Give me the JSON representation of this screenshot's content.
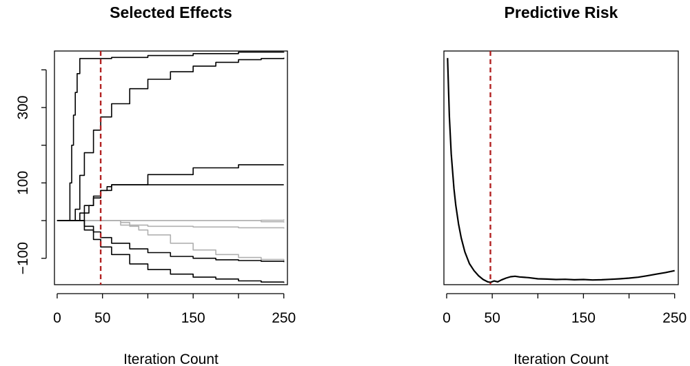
{
  "chart_data": [
    {
      "type": "line",
      "title": "Selected Effects",
      "xlabel": "Iteration Count",
      "ylabel": "",
      "xlim": [
        -3,
        254
      ],
      "ylim": [
        -170,
        450
      ],
      "xticks": [
        0,
        50,
        100,
        150,
        200,
        250
      ],
      "xtick_labels": [
        "0",
        "50",
        "",
        "150",
        "",
        "250"
      ],
      "yticks": [
        -100,
        0,
        100,
        200,
        300,
        400
      ],
      "ytick_labels": [
        "−100",
        "",
        "100",
        "",
        "300",
        ""
      ],
      "vline": {
        "x": 48,
        "color": "#b22222",
        "style": "dashed"
      },
      "grid": false,
      "legend": "none",
      "series": [
        {
          "color": "#000000",
          "step": true,
          "x": [
            0,
            12,
            14,
            16,
            18,
            20,
            22,
            25,
            30,
            40,
            60,
            100,
            150,
            200,
            250
          ],
          "y": [
            0,
            0,
            100,
            200,
            280,
            340,
            390,
            430,
            430,
            430,
            433,
            438,
            443,
            447,
            448
          ]
        },
        {
          "color": "#000000",
          "step": true,
          "x": [
            0,
            18,
            20,
            25,
            30,
            40,
            48,
            60,
            80,
            100,
            125,
            150,
            175,
            200,
            225,
            250
          ],
          "y": [
            0,
            0,
            30,
            120,
            180,
            240,
            275,
            310,
            350,
            375,
            395,
            410,
            420,
            427,
            430,
            432
          ]
        },
        {
          "color": "#000000",
          "step": true,
          "x": [
            0,
            22,
            25,
            30,
            40,
            48,
            60,
            100,
            150,
            200,
            250
          ],
          "y": [
            0,
            0,
            20,
            40,
            65,
            80,
            95,
            122,
            140,
            148,
            148
          ]
        },
        {
          "color": "#000000",
          "step": true,
          "x": [
            0,
            28,
            30,
            35,
            40,
            48,
            55,
            60,
            100,
            150,
            200,
            250
          ],
          "y": [
            0,
            0,
            20,
            40,
            60,
            80,
            90,
            95,
            95,
            95,
            95,
            95
          ]
        },
        {
          "color": "#000000",
          "step": true,
          "x": [
            0,
            22,
            30,
            40,
            48,
            60,
            80,
            100,
            125,
            150,
            175,
            200,
            225,
            250
          ],
          "y": [
            0,
            0,
            -15,
            -30,
            -45,
            -60,
            -75,
            -85,
            -95,
            -100,
            -104,
            -106,
            -108,
            -110
          ]
        },
        {
          "color": "#000000",
          "step": true,
          "x": [
            0,
            22,
            30,
            40,
            48,
            60,
            80,
            100,
            125,
            150,
            175,
            200,
            225,
            250
          ],
          "y": [
            0,
            0,
            -25,
            -50,
            -70,
            -90,
            -115,
            -130,
            -142,
            -150,
            -155,
            -160,
            -163,
            -165
          ]
        },
        {
          "color": "#b0b0b0",
          "step": true,
          "x": [
            0,
            60,
            70,
            80,
            90,
            100,
            125,
            150,
            175,
            200,
            225,
            250
          ],
          "y": [
            0,
            0,
            -5,
            -15,
            -25,
            -38,
            -60,
            -78,
            -90,
            -98,
            -103,
            -107
          ]
        },
        {
          "color": "#b0b0b0",
          "step": true,
          "x": [
            0,
            65,
            70,
            100,
            150,
            200,
            250
          ],
          "y": [
            0,
            0,
            -12,
            -15,
            -17,
            -19,
            -21
          ]
        },
        {
          "color": "#b0b0b0",
          "step": true,
          "x": [
            0,
            200,
            225,
            250
          ],
          "y": [
            0,
            0,
            1,
            3
          ]
        },
        {
          "color": "#b0b0b0",
          "step": true,
          "x": [
            0,
            200,
            225,
            250
          ],
          "y": [
            0,
            0,
            -3,
            -5
          ]
        }
      ]
    },
    {
      "type": "line",
      "title": "Predictive Risk",
      "xlabel": "Iteration Count",
      "ylabel": "",
      "xlim": [
        -3,
        254
      ],
      "ylim": [
        0,
        100
      ],
      "xticks": [
        0,
        50,
        100,
        150,
        200,
        250
      ],
      "xtick_labels": [
        "0",
        "50",
        "",
        "150",
        "",
        "250"
      ],
      "yticks": [],
      "vline": {
        "x": 48,
        "color": "#b22222",
        "style": "dashed"
      },
      "grid": false,
      "legend": "none",
      "series": [
        {
          "color": "#000000",
          "step": false,
          "x": [
            1,
            3,
            5,
            8,
            10,
            13,
            16,
            20,
            25,
            30,
            35,
            40,
            45,
            48,
            52,
            56,
            60,
            65,
            70,
            75,
            80,
            90,
            100,
            110,
            120,
            130,
            140,
            150,
            160,
            170,
            180,
            190,
            200,
            210,
            220,
            230,
            240,
            250
          ],
          "y": [
            97,
            72,
            56,
            41,
            34,
            26,
            20,
            14,
            9,
            6,
            3.8,
            2.2,
            1.2,
            1.0,
            1.6,
            1.2,
            2.0,
            2.8,
            3.4,
            3.6,
            3.3,
            3.0,
            2.5,
            2.4,
            2.2,
            2.3,
            2.1,
            2.2,
            2.0,
            2.1,
            2.3,
            2.5,
            2.8,
            3.2,
            3.8,
            4.5,
            5.2,
            6.0
          ]
        }
      ]
    }
  ]
}
